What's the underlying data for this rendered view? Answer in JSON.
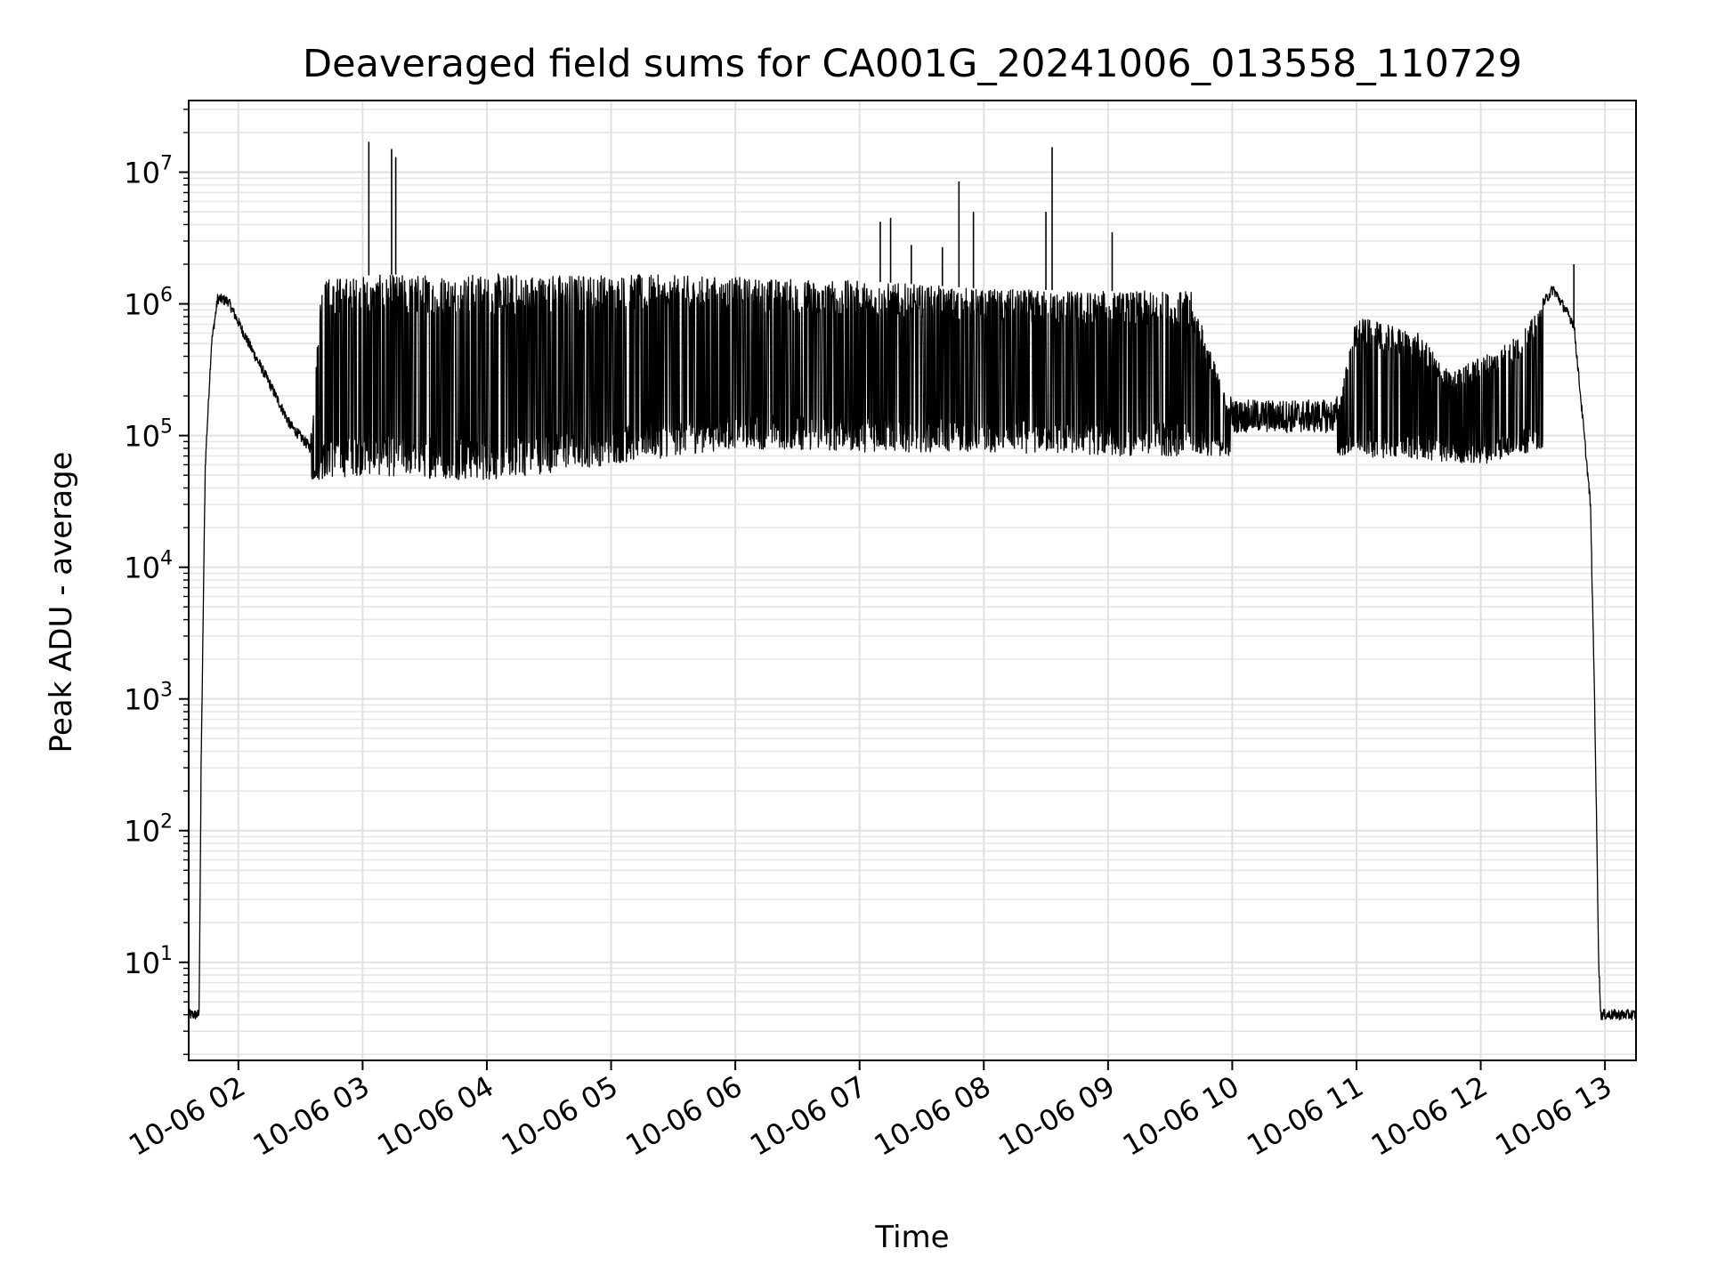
{
  "chart_data": {
    "type": "line",
    "title": "Deaveraged field sums for CA001G_20241006_013558_110729",
    "xlabel": "Time",
    "ylabel": "Peak ADU - average",
    "yscale": "log",
    "ylim": [
      1.8,
      35000000
    ],
    "xlim": [
      "2024-10-06 01:36",
      "2024-10-06 13:15"
    ],
    "grid": true,
    "line_color": "#000000",
    "x_ticks": [
      {
        "t": "2024-10-06 02:00",
        "label": "10-06 02"
      },
      {
        "t": "2024-10-06 03:00",
        "label": "10-06 03"
      },
      {
        "t": "2024-10-06 04:00",
        "label": "10-06 04"
      },
      {
        "t": "2024-10-06 05:00",
        "label": "10-06 05"
      },
      {
        "t": "2024-10-06 06:00",
        "label": "10-06 06"
      },
      {
        "t": "2024-10-06 07:00",
        "label": "10-06 07"
      },
      {
        "t": "2024-10-06 08:00",
        "label": "10-06 08"
      },
      {
        "t": "2024-10-06 09:00",
        "label": "10-06 09"
      },
      {
        "t": "2024-10-06 10:00",
        "label": "10-06 10"
      },
      {
        "t": "2024-10-06 11:00",
        "label": "10-06 11"
      },
      {
        "t": "2024-10-06 12:00",
        "label": "10-06 12"
      },
      {
        "t": "2024-10-06 13:00",
        "label": "10-06 13"
      }
    ],
    "y_ticks": [
      {
        "value": 10,
        "base": "10",
        "exp": "1"
      },
      {
        "value": 100,
        "base": "10",
        "exp": "2"
      },
      {
        "value": 1000,
        "base": "10",
        "exp": "3"
      },
      {
        "value": 10000,
        "base": "10",
        "exp": "4"
      },
      {
        "value": 100000,
        "base": "10",
        "exp": "5"
      },
      {
        "value": 1000000,
        "base": "10",
        "exp": "6"
      },
      {
        "value": 10000000,
        "base": "10",
        "exp": "7"
      }
    ],
    "series": [
      {
        "envelope_upper": [
          [
            "2024-10-06 01:36",
            4
          ],
          [
            "2024-10-06 01:41",
            4
          ],
          [
            "2024-10-06 01:42",
            300
          ],
          [
            "2024-10-06 01:44",
            60000
          ],
          [
            "2024-10-06 01:47",
            500000
          ],
          [
            "2024-10-06 01:50",
            1100000
          ],
          [
            "2024-10-06 01:55",
            1050000
          ],
          [
            "2024-10-06 02:05",
            500000
          ],
          [
            "2024-10-06 02:15",
            250000
          ],
          [
            "2024-10-06 02:25",
            120000
          ],
          [
            "2024-10-06 02:35",
            80000
          ],
          [
            "2024-10-06 02:40",
            1600000
          ],
          [
            "2024-10-06 03:30",
            1700000
          ],
          [
            "2024-10-06 04:00",
            1700000
          ],
          [
            "2024-10-06 05:00",
            1700000
          ],
          [
            "2024-10-06 06:00",
            1600000
          ],
          [
            "2024-10-06 07:00",
            1500000
          ],
          [
            "2024-10-06 08:00",
            1300000
          ],
          [
            "2024-10-06 09:00",
            1250000
          ],
          [
            "2024-10-06 09:40",
            1250000
          ],
          [
            "2024-10-06 10:00",
            140000
          ],
          [
            "2024-10-06 10:50",
            140000
          ],
          [
            "2024-10-06 11:00",
            800000
          ],
          [
            "2024-10-06 11:30",
            600000
          ],
          [
            "2024-10-06 11:45",
            300000
          ],
          [
            "2024-10-06 12:00",
            400000
          ],
          [
            "2024-10-06 12:20",
            600000
          ],
          [
            "2024-10-06 12:30",
            1000000
          ],
          [
            "2024-10-06 12:35",
            1300000
          ],
          [
            "2024-10-06 12:45",
            700000
          ],
          [
            "2024-10-06 12:50",
            100000
          ],
          [
            "2024-10-06 12:53",
            30000
          ],
          [
            "2024-10-06 12:55",
            1000
          ],
          [
            "2024-10-06 12:57",
            10
          ],
          [
            "2024-10-06 12:58",
            4
          ],
          [
            "2024-10-06 13:15",
            4
          ]
        ],
        "envelope_lower": [
          [
            "2024-10-06 02:35",
            45000
          ],
          [
            "2024-10-06 03:00",
            50000
          ],
          [
            "2024-10-06 04:00",
            45000
          ],
          [
            "2024-10-06 05:00",
            60000
          ],
          [
            "2024-10-06 06:00",
            80000
          ],
          [
            "2024-10-06 07:00",
            75000
          ],
          [
            "2024-10-06 08:00",
            75000
          ],
          [
            "2024-10-06 09:00",
            70000
          ],
          [
            "2024-10-06 10:00",
            70000
          ],
          [
            "2024-10-06 11:00",
            70000
          ],
          [
            "2024-10-06 12:00",
            60000
          ],
          [
            "2024-10-06 12:30",
            80000
          ]
        ],
        "spikes": [
          [
            "2024-10-06 03:03",
            17000000
          ],
          [
            "2024-10-06 03:14",
            15000000
          ],
          [
            "2024-10-06 03:16",
            13000000
          ],
          [
            "2024-10-06 07:10",
            4200000
          ],
          [
            "2024-10-06 07:15",
            4500000
          ],
          [
            "2024-10-06 07:25",
            2800000
          ],
          [
            "2024-10-06 07:40",
            2700000
          ],
          [
            "2024-10-06 07:48",
            8500000
          ],
          [
            "2024-10-06 07:55",
            5000000
          ],
          [
            "2024-10-06 08:30",
            5000000
          ],
          [
            "2024-10-06 08:33",
            15500000
          ],
          [
            "2024-10-06 09:02",
            3500000
          ],
          [
            "2024-10-06 12:45",
            2000000
          ]
        ]
      }
    ]
  }
}
